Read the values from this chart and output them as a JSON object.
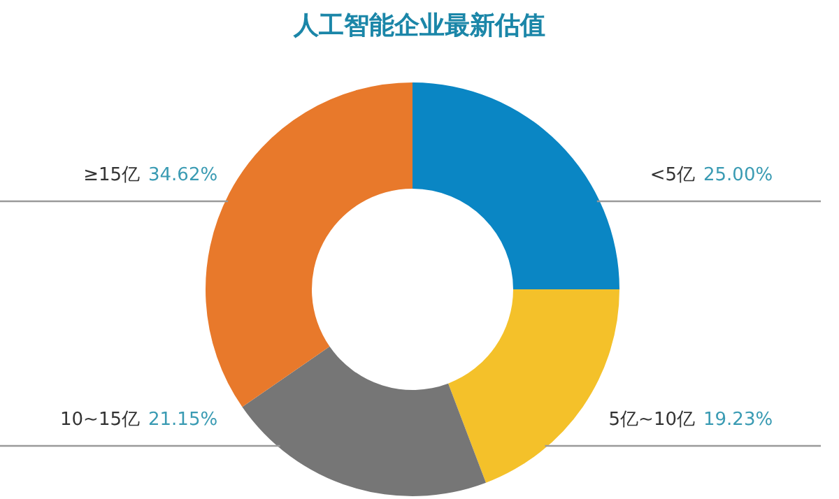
{
  "chart_data": {
    "type": "donut",
    "title": "人工智能企业最新估值",
    "categories": [
      "<5亿",
      "5亿~10亿",
      "10~15亿",
      "≥15亿"
    ],
    "values": [
      25.0,
      19.23,
      21.15,
      34.62
    ],
    "value_labels": [
      "25.00%",
      "19.23%",
      "21.15%",
      "34.62%"
    ],
    "colors": [
      "#0a86c4",
      "#f4c12a",
      "#767676",
      "#e8792b"
    ],
    "legend": false
  }
}
